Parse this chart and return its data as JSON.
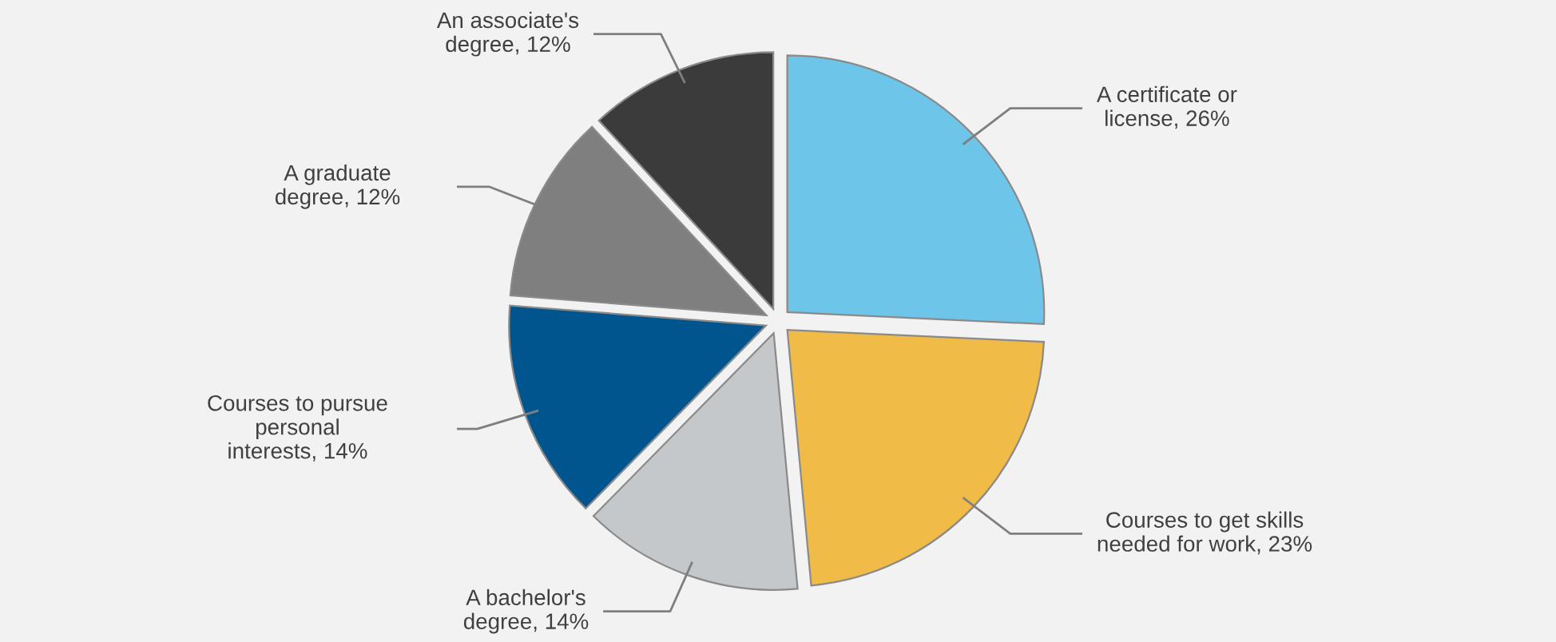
{
  "chart_data": {
    "type": "pie",
    "categories": [
      "A certificate or license",
      "Courses to get skills needed for work",
      "A bachelor's degree",
      "Courses to pursue personal interests",
      "A graduate degree",
      "An associate's degree"
    ],
    "values": [
      26,
      23,
      14,
      14,
      12,
      12
    ],
    "value_labels": [
      "26%",
      "23%",
      "14%",
      "14%",
      "12%",
      "12%"
    ],
    "colors": [
      "#6dc5ea",
      "#f0bb47",
      "#c4c8cb",
      "#00558f",
      "#7f7f7f",
      "#3b3b3b"
    ],
    "legend": false
  }
}
